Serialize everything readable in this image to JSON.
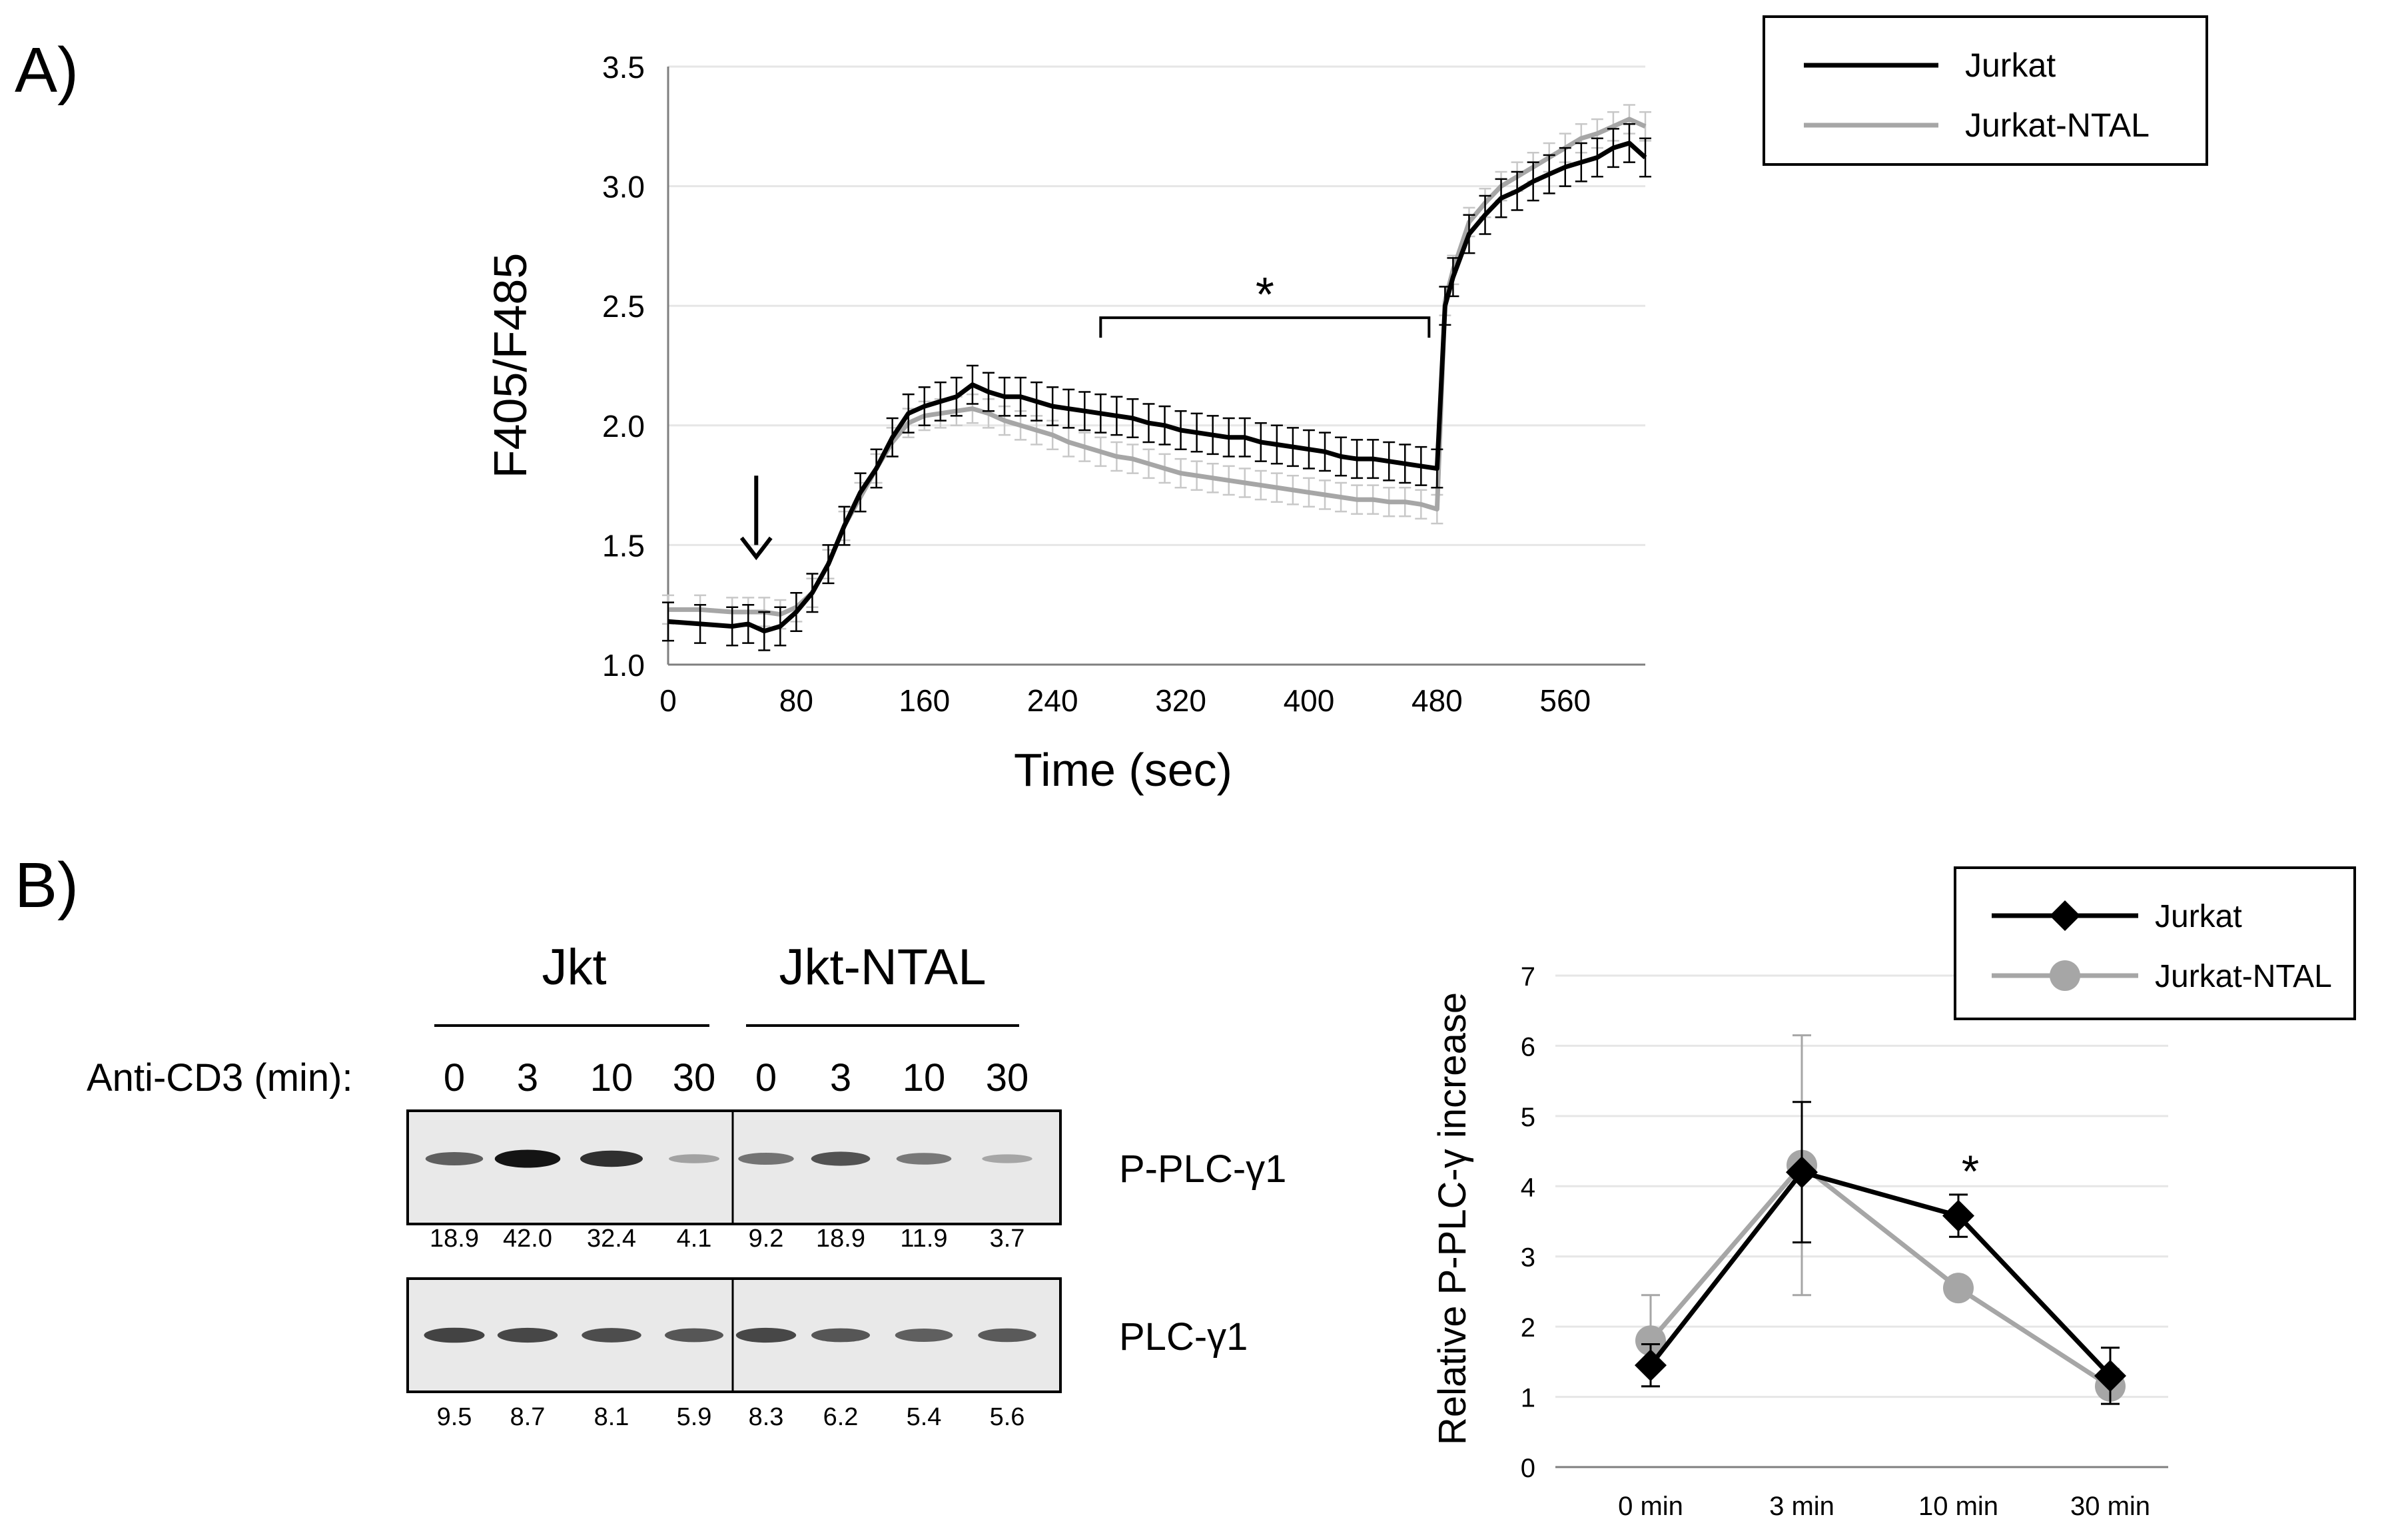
{
  "panel_a_label": "A)",
  "panel_b_label": "B)",
  "colors": {
    "jurkat": "#000000",
    "ntal": "#a6a6a6",
    "ntal_err": "#c8c8c8",
    "grid": "#e6e6e6",
    "axis": "#7f7f7f"
  },
  "chart_data": [
    {
      "type": "line",
      "title": "",
      "xlabel": "Time (sec)",
      "ylabel": "F405/F485",
      "xlim": [
        0,
        610
      ],
      "ylim": [
        1.0,
        3.5
      ],
      "xticks": [
        "0",
        "80",
        "160",
        "240",
        "320",
        "400",
        "480",
        "560"
      ],
      "yticks": [
        "1.0",
        "1.5",
        "2.0",
        "2.5",
        "3.0",
        "3.5"
      ],
      "grid": true,
      "legend_position": "top-right",
      "series": [
        {
          "name": "Jurkat",
          "x": [
            0,
            20,
            40,
            50,
            60,
            70,
            80,
            90,
            100,
            110,
            120,
            130,
            140,
            150,
            160,
            170,
            180,
            190,
            200,
            210,
            220,
            230,
            240,
            250,
            260,
            270,
            280,
            290,
            300,
            310,
            320,
            330,
            340,
            350,
            360,
            370,
            380,
            390,
            400,
            410,
            420,
            430,
            440,
            450,
            460,
            470,
            480,
            485,
            490,
            500,
            510,
            520,
            530,
            540,
            550,
            560,
            570,
            580,
            590,
            600,
            610
          ],
          "y": [
            1.18,
            1.17,
            1.16,
            1.17,
            1.14,
            1.16,
            1.22,
            1.3,
            1.42,
            1.58,
            1.72,
            1.82,
            1.95,
            2.05,
            2.08,
            2.1,
            2.12,
            2.17,
            2.14,
            2.12,
            2.12,
            2.1,
            2.08,
            2.07,
            2.06,
            2.05,
            2.04,
            2.03,
            2.01,
            2.0,
            1.98,
            1.97,
            1.96,
            1.95,
            1.95,
            1.93,
            1.92,
            1.91,
            1.9,
            1.89,
            1.87,
            1.86,
            1.86,
            1.85,
            1.84,
            1.83,
            1.82,
            2.5,
            2.62,
            2.8,
            2.88,
            2.95,
            2.98,
            3.02,
            3.05,
            3.08,
            3.1,
            3.12,
            3.16,
            3.18,
            3.12
          ],
          "error": 0.08
        },
        {
          "name": "Jurkat-NTAL",
          "x": [
            0,
            20,
            40,
            50,
            60,
            70,
            80,
            90,
            100,
            110,
            120,
            130,
            140,
            150,
            160,
            170,
            180,
            190,
            200,
            210,
            220,
            230,
            240,
            250,
            260,
            270,
            280,
            290,
            300,
            310,
            320,
            330,
            340,
            350,
            360,
            370,
            380,
            390,
            400,
            410,
            420,
            430,
            440,
            450,
            460,
            470,
            480,
            485,
            490,
            500,
            510,
            520,
            530,
            540,
            550,
            560,
            570,
            580,
            590,
            600,
            610
          ],
          "y": [
            1.23,
            1.23,
            1.22,
            1.22,
            1.22,
            1.21,
            1.24,
            1.3,
            1.42,
            1.58,
            1.7,
            1.82,
            1.93,
            2.01,
            2.04,
            2.05,
            2.06,
            2.07,
            2.05,
            2.02,
            2.0,
            1.98,
            1.96,
            1.93,
            1.91,
            1.89,
            1.87,
            1.86,
            1.84,
            1.82,
            1.8,
            1.79,
            1.78,
            1.77,
            1.76,
            1.75,
            1.74,
            1.73,
            1.72,
            1.71,
            1.7,
            1.69,
            1.69,
            1.68,
            1.68,
            1.67,
            1.65,
            2.52,
            2.65,
            2.85,
            2.93,
            3.0,
            3.04,
            3.08,
            3.12,
            3.16,
            3.2,
            3.22,
            3.25,
            3.28,
            3.25
          ],
          "error": 0.06
        }
      ],
      "annotations": {
        "significance_marker": "*",
        "bracket_x": [
          270,
          475
        ],
        "stimulus_arrow_x": 55
      }
    },
    {
      "type": "line",
      "title": "",
      "xlabel": "",
      "ylabel": "Relative P-PLC-γ increase",
      "categories": [
        "0 min",
        "3 min",
        "10 min",
        "30 min"
      ],
      "ylim": [
        0,
        7
      ],
      "yticks": [
        "0",
        "1",
        "2",
        "3",
        "4",
        "5",
        "6",
        "7"
      ],
      "grid": true,
      "legend_position": "top-right",
      "series": [
        {
          "name": "Jurkat",
          "marker": "diamond",
          "values": [
            1.45,
            4.2,
            3.58,
            1.3
          ],
          "error": [
            0.3,
            1.0,
            0.3,
            0.4
          ]
        },
        {
          "name": "Jurkat-NTAL",
          "marker": "circle",
          "values": [
            1.8,
            4.3,
            2.55,
            1.15
          ],
          "error": [
            0.65,
            1.85,
            0.15,
            0.25
          ]
        }
      ],
      "annotations": {
        "significance_marker": "*",
        "significance_category": "10 min"
      }
    }
  ],
  "blot": {
    "groups": [
      "Jkt",
      "Jkt-NTAL"
    ],
    "treatment_label": "Anti-CD3 (min):",
    "timepoints": [
      "0",
      "3",
      "10",
      "30",
      "0",
      "3",
      "10",
      "30"
    ],
    "rows": [
      {
        "label": "P-PLC-γ1",
        "intensity": [
          0.55,
          0.95,
          0.8,
          0.2,
          0.45,
          0.62,
          0.42,
          0.18
        ],
        "values": [
          "18.9",
          "42.0",
          "32.4",
          "4.1",
          "9.2",
          "18.9",
          "11.9",
          "3.7"
        ]
      },
      {
        "label": "PLC-γ1",
        "intensity": [
          0.7,
          0.68,
          0.65,
          0.6,
          0.68,
          0.6,
          0.55,
          0.58
        ],
        "values": [
          "9.5",
          "8.7",
          "8.1",
          "5.9",
          "8.3",
          "6.2",
          "5.4",
          "5.6"
        ]
      }
    ]
  }
}
